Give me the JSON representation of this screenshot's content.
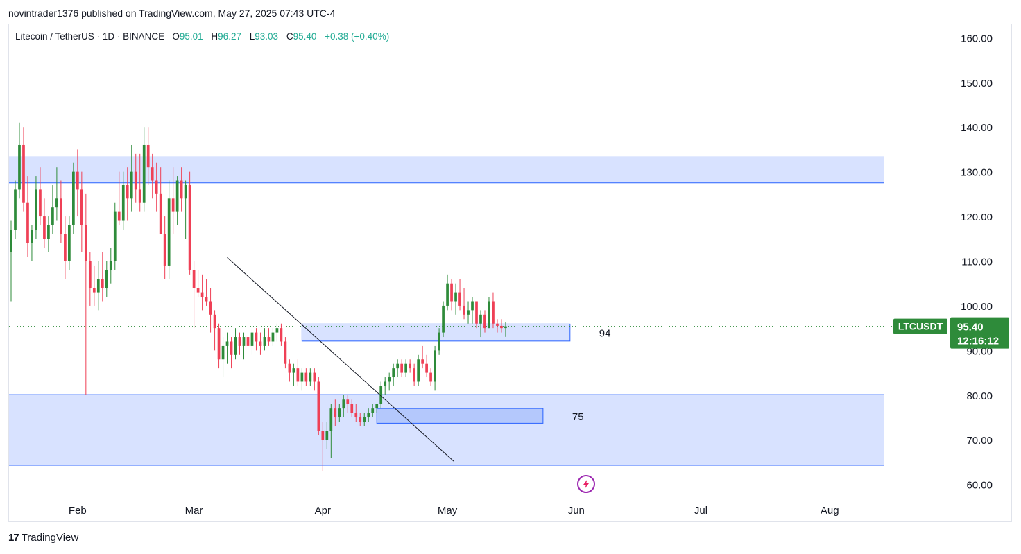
{
  "header": {
    "publisher_text": "novintrader1376 published on TradingView.com, May 27, 2025 07:43 UTC-4"
  },
  "legend": {
    "symbol": "Litecoin / TetherUS · 1D · BINANCE",
    "open_label": "O",
    "open": "95.01",
    "high_label": "H",
    "high": "96.27",
    "low_label": "L",
    "low": "93.03",
    "close_label": "C",
    "close": "95.40",
    "change": "+0.38 (+0.40%)"
  },
  "footer": {
    "brand": "TradingView",
    "logo_text": "17"
  },
  "colors": {
    "up": "#26a69a",
    "up_body": "#2e8b3a",
    "down": "#ef4056",
    "zone_fill": "#d6e0ff",
    "zone_line": "#2962ff",
    "price_tag": "#2e8b3a"
  },
  "chart_data": {
    "type": "candlestick",
    "symbol": "LTCUSDT",
    "interval": "1D",
    "exchange": "BINANCE",
    "last_price": "95.40",
    "countdown": "12:16:12",
    "y_axis": {
      "ylim": [
        57,
        163
      ],
      "ticks": [
        "60.00",
        "70.00",
        "80.00",
        "90.00",
        "100.00",
        "110.00",
        "120.00",
        "130.00",
        "140.00",
        "150.00",
        "160.00"
      ],
      "tick_values": [
        60,
        70,
        80,
        90,
        100,
        110,
        120,
        130,
        140,
        150,
        160
      ]
    },
    "x_axis": {
      "tick_labels": [
        "Feb",
        "Mar",
        "Apr",
        "May",
        "Jun",
        "Jul",
        "Aug"
      ],
      "tick_days": [
        16,
        44,
        75,
        105,
        136,
        166,
        197
      ],
      "xlim": [
        -0.5,
        225.5
      ]
    },
    "zones": [
      {
        "name": "resistance-zone",
        "from": 127.5,
        "to": 133.3,
        "x_from": -0.5,
        "x_to": 210
      },
      {
        "name": "support-zone",
        "from": 64.3,
        "to": 80.1,
        "x_from": -0.5,
        "x_to": 210
      },
      {
        "name": "zone-94",
        "from": 92.1,
        "to": 95.9,
        "x_from": 70,
        "x_to": 134.5,
        "label": "94"
      },
      {
        "name": "zone-75",
        "from": 73.7,
        "to": 77.0,
        "x_from": 88,
        "x_to": 128,
        "label": "75"
      }
    ],
    "trendline": {
      "x1": 52,
      "y1": 110.8,
      "x2": 106.5,
      "y2": 65.2
    },
    "candles": [
      {
        "o": 112,
        "h": 119,
        "l": 101,
        "c": 117
      },
      {
        "o": 117,
        "h": 128,
        "l": 115,
        "c": 126
      },
      {
        "o": 126,
        "h": 141,
        "l": 124,
        "c": 136
      },
      {
        "o": 136,
        "h": 140,
        "l": 121,
        "c": 123
      },
      {
        "o": 123,
        "h": 129,
        "l": 111,
        "c": 114
      },
      {
        "o": 114,
        "h": 118,
        "l": 110,
        "c": 117
      },
      {
        "o": 117,
        "h": 129,
        "l": 115,
        "c": 126
      },
      {
        "o": 126,
        "h": 131,
        "l": 118,
        "c": 120
      },
      {
        "o": 120,
        "h": 124,
        "l": 113,
        "c": 115
      },
      {
        "o": 115,
        "h": 120,
        "l": 112,
        "c": 118
      },
      {
        "o": 118,
        "h": 127,
        "l": 116,
        "c": 122
      },
      {
        "o": 122,
        "h": 131,
        "l": 119,
        "c": 124
      },
      {
        "o": 124,
        "h": 128,
        "l": 114,
        "c": 116
      },
      {
        "o": 116,
        "h": 120,
        "l": 106,
        "c": 110
      },
      {
        "o": 110,
        "h": 120,
        "l": 108,
        "c": 118
      },
      {
        "o": 118,
        "h": 132,
        "l": 116,
        "c": 130
      },
      {
        "o": 130,
        "h": 135,
        "l": 120,
        "c": 126
      },
      {
        "o": 126,
        "h": 130,
        "l": 112,
        "c": 118
      },
      {
        "o": 118,
        "h": 125,
        "l": 80,
        "c": 110
      },
      {
        "o": 110,
        "h": 112,
        "l": 100,
        "c": 104
      },
      {
        "o": 104,
        "h": 109,
        "l": 100,
        "c": 103
      },
      {
        "o": 103,
        "h": 110,
        "l": 99,
        "c": 106
      },
      {
        "o": 106,
        "h": 112,
        "l": 101,
        "c": 104
      },
      {
        "o": 104,
        "h": 110,
        "l": 102,
        "c": 108
      },
      {
        "o": 108,
        "h": 113,
        "l": 105,
        "c": 110
      },
      {
        "o": 110,
        "h": 123,
        "l": 108,
        "c": 121
      },
      {
        "o": 121,
        "h": 130,
        "l": 118,
        "c": 119
      },
      {
        "o": 119,
        "h": 130,
        "l": 117,
        "c": 127
      },
      {
        "o": 127,
        "h": 131,
        "l": 119,
        "c": 124
      },
      {
        "o": 124,
        "h": 136,
        "l": 121,
        "c": 130
      },
      {
        "o": 130,
        "h": 134,
        "l": 123,
        "c": 126
      },
      {
        "o": 126,
        "h": 134,
        "l": 121,
        "c": 123
      },
      {
        "o": 123,
        "h": 140,
        "l": 121,
        "c": 136
      },
      {
        "o": 136,
        "h": 140,
        "l": 127,
        "c": 131
      },
      {
        "o": 131,
        "h": 134,
        "l": 124,
        "c": 128
      },
      {
        "o": 128,
        "h": 132,
        "l": 121,
        "c": 125
      },
      {
        "o": 125,
        "h": 131,
        "l": 116,
        "c": 116
      },
      {
        "o": 116,
        "h": 120,
        "l": 106,
        "c": 109
      },
      {
        "o": 109,
        "h": 128,
        "l": 106,
        "c": 124
      },
      {
        "o": 124,
        "h": 131,
        "l": 116,
        "c": 121
      },
      {
        "o": 121,
        "h": 129,
        "l": 118,
        "c": 128
      },
      {
        "o": 128,
        "h": 131,
        "l": 121,
        "c": 124
      },
      {
        "o": 124,
        "h": 128,
        "l": 115,
        "c": 127
      },
      {
        "o": 127,
        "h": 130,
        "l": 107,
        "c": 108
      },
      {
        "o": 108,
        "h": 110,
        "l": 95,
        "c": 104
      },
      {
        "o": 104,
        "h": 108,
        "l": 102,
        "c": 103
      },
      {
        "o": 103,
        "h": 107,
        "l": 99,
        "c": 102
      },
      {
        "o": 102,
        "h": 106,
        "l": 100,
        "c": 101
      },
      {
        "o": 101,
        "h": 104,
        "l": 94,
        "c": 98
      },
      {
        "o": 98,
        "h": 99,
        "l": 90,
        "c": 95
      },
      {
        "o": 95,
        "h": 96,
        "l": 86,
        "c": 88
      },
      {
        "o": 88,
        "h": 93,
        "l": 84,
        "c": 91
      },
      {
        "o": 91,
        "h": 94,
        "l": 87,
        "c": 92
      },
      {
        "o": 92,
        "h": 93,
        "l": 86,
        "c": 89
      },
      {
        "o": 89,
        "h": 95,
        "l": 88,
        "c": 93
      },
      {
        "o": 93,
        "h": 94,
        "l": 89,
        "c": 91
      },
      {
        "o": 91,
        "h": 94,
        "l": 88,
        "c": 93
      },
      {
        "o": 93,
        "h": 95,
        "l": 90,
        "c": 91
      },
      {
        "o": 91,
        "h": 95,
        "l": 89,
        "c": 94
      },
      {
        "o": 94,
        "h": 95,
        "l": 90,
        "c": 92
      },
      {
        "o": 92,
        "h": 94,
        "l": 89,
        "c": 91
      },
      {
        "o": 91,
        "h": 95,
        "l": 90,
        "c": 93
      },
      {
        "o": 93,
        "h": 95,
        "l": 91,
        "c": 92
      },
      {
        "o": 92,
        "h": 95,
        "l": 91,
        "c": 94
      },
      {
        "o": 94,
        "h": 96,
        "l": 92,
        "c": 95
      },
      {
        "o": 95,
        "h": 96,
        "l": 91,
        "c": 92
      },
      {
        "o": 92,
        "h": 93,
        "l": 86,
        "c": 87
      },
      {
        "o": 87,
        "h": 88,
        "l": 83,
        "c": 85
      },
      {
        "o": 85,
        "h": 87,
        "l": 82,
        "c": 86
      },
      {
        "o": 86,
        "h": 88,
        "l": 82,
        "c": 83
      },
      {
        "o": 83,
        "h": 86,
        "l": 81,
        "c": 85
      },
      {
        "o": 85,
        "h": 86,
        "l": 82,
        "c": 83
      },
      {
        "o": 83,
        "h": 86,
        "l": 82,
        "c": 85
      },
      {
        "o": 85,
        "h": 86,
        "l": 81,
        "c": 83
      },
      {
        "o": 83,
        "h": 84,
        "l": 71,
        "c": 72
      },
      {
        "o": 72,
        "h": 74,
        "l": 63,
        "c": 70
      },
      {
        "o": 70,
        "h": 74,
        "l": 68,
        "c": 72
      },
      {
        "o": 72,
        "h": 78,
        "l": 66,
        "c": 77
      },
      {
        "o": 77,
        "h": 79,
        "l": 73,
        "c": 75
      },
      {
        "o": 75,
        "h": 78,
        "l": 74,
        "c": 77
      },
      {
        "o": 77,
        "h": 80,
        "l": 75,
        "c": 79
      },
      {
        "o": 79,
        "h": 80,
        "l": 76,
        "c": 78
      },
      {
        "o": 78,
        "h": 79,
        "l": 75,
        "c": 76
      },
      {
        "o": 76,
        "h": 78,
        "l": 74,
        "c": 75
      },
      {
        "o": 75,
        "h": 76,
        "l": 73,
        "c": 74
      },
      {
        "o": 74,
        "h": 76,
        "l": 73,
        "c": 75
      },
      {
        "o": 75,
        "h": 77,
        "l": 74,
        "c": 76
      },
      {
        "o": 76,
        "h": 78,
        "l": 75,
        "c": 77
      },
      {
        "o": 77,
        "h": 78,
        "l": 76,
        "c": 78
      },
      {
        "o": 78,
        "h": 83,
        "l": 77,
        "c": 82
      },
      {
        "o": 82,
        "h": 84,
        "l": 80,
        "c": 83
      },
      {
        "o": 83,
        "h": 85,
        "l": 81,
        "c": 84
      },
      {
        "o": 84,
        "h": 87,
        "l": 82,
        "c": 86
      },
      {
        "o": 86,
        "h": 88,
        "l": 84,
        "c": 87
      },
      {
        "o": 87,
        "h": 88,
        "l": 84,
        "c": 85
      },
      {
        "o": 85,
        "h": 88,
        "l": 84,
        "c": 87
      },
      {
        "o": 87,
        "h": 88,
        "l": 85,
        "c": 86
      },
      {
        "o": 86,
        "h": 87,
        "l": 82,
        "c": 83
      },
      {
        "o": 83,
        "h": 89,
        "l": 82,
        "c": 88
      },
      {
        "o": 88,
        "h": 91,
        "l": 86,
        "c": 87
      },
      {
        "o": 87,
        "h": 89,
        "l": 84,
        "c": 85
      },
      {
        "o": 85,
        "h": 86,
        "l": 82,
        "c": 83
      },
      {
        "o": 83,
        "h": 91,
        "l": 81,
        "c": 90
      },
      {
        "o": 90,
        "h": 95,
        "l": 89,
        "c": 94
      },
      {
        "o": 94,
        "h": 101,
        "l": 93,
        "c": 100
      },
      {
        "o": 100,
        "h": 107,
        "l": 99,
        "c": 105
      },
      {
        "o": 105,
        "h": 106,
        "l": 99,
        "c": 101
      },
      {
        "o": 101,
        "h": 105,
        "l": 98,
        "c": 103
      },
      {
        "o": 103,
        "h": 106,
        "l": 99,
        "c": 100
      },
      {
        "o": 100,
        "h": 104,
        "l": 97,
        "c": 98
      },
      {
        "o": 98,
        "h": 101,
        "l": 96,
        "c": 99
      },
      {
        "o": 99,
        "h": 102,
        "l": 96,
        "c": 101
      },
      {
        "o": 101,
        "h": 101,
        "l": 95,
        "c": 96
      },
      {
        "o": 96,
        "h": 99,
        "l": 93,
        "c": 98
      },
      {
        "o": 98,
        "h": 99,
        "l": 94,
        "c": 95
      },
      {
        "o": 95,
        "h": 102,
        "l": 95,
        "c": 101
      },
      {
        "o": 101,
        "h": 103,
        "l": 95,
        "c": 96
      },
      {
        "o": 96,
        "h": 97,
        "l": 94,
        "c": 95.5
      },
      {
        "o": 95.5,
        "h": 97,
        "l": 94,
        "c": 95
      },
      {
        "o": 95.01,
        "h": 96.27,
        "l": 93.03,
        "c": 95.4
      }
    ],
    "annotations": [
      "94",
      "75"
    ]
  }
}
